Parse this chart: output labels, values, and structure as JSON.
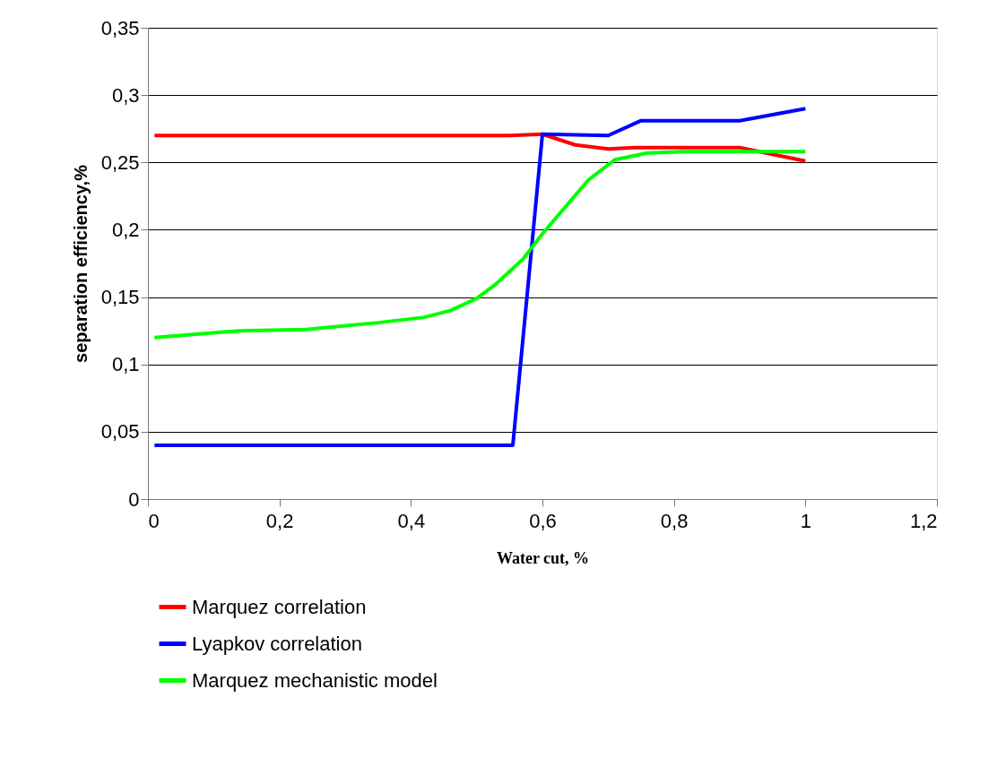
{
  "chart_data": {
    "type": "line",
    "xlabel": "Water cut, %",
    "ylabel": "separation efficiency,%",
    "xlim": [
      0,
      1.2
    ],
    "ylim": [
      0,
      0.35
    ],
    "xticks": [
      {
        "value": 0,
        "label": "0"
      },
      {
        "value": 0.2,
        "label": "0,2"
      },
      {
        "value": 0.4,
        "label": "0,4"
      },
      {
        "value": 0.6,
        "label": "0,6"
      },
      {
        "value": 0.8,
        "label": "0,8"
      },
      {
        "value": 1,
        "label": "1"
      },
      {
        "value": 1.2,
        "label": "1,2"
      }
    ],
    "yticks": [
      {
        "value": 0,
        "label": "0"
      },
      {
        "value": 0.05,
        "label": "0,05"
      },
      {
        "value": 0.1,
        "label": "0,1"
      },
      {
        "value": 0.15,
        "label": "0,15"
      },
      {
        "value": 0.2,
        "label": "0,2"
      },
      {
        "value": 0.25,
        "label": "0,25"
      },
      {
        "value": 0.3,
        "label": "0,3"
      },
      {
        "value": 0.35,
        "label": "0,35"
      }
    ],
    "grid": "y",
    "legend": "bottom",
    "marker": "none",
    "line_style": "solid",
    "series": [
      {
        "name": "Marquez correlation",
        "color": "#ff0000",
        "x": [
          0.01,
          0.55,
          0.6,
          0.65,
          0.7,
          0.74,
          0.9,
          1.0
        ],
        "values": [
          0.27,
          0.27,
          0.271,
          0.263,
          0.26,
          0.261,
          0.261,
          0.251
        ]
      },
      {
        "name": "Lyapkov correlation",
        "color": "#0000ff",
        "x": [
          0.01,
          0.555,
          0.6,
          0.7,
          0.75,
          0.9,
          1.0
        ],
        "values": [
          0.04,
          0.04,
          0.271,
          0.27,
          0.281,
          0.281,
          0.29
        ]
      },
      {
        "name": "Marquez mechanistic model",
        "color": "#00ff00",
        "x": [
          0.01,
          0.14,
          0.24,
          0.35,
          0.42,
          0.46,
          0.5,
          0.53,
          0.57,
          0.6,
          0.67,
          0.71,
          0.76,
          0.82,
          0.9,
          1.0
        ],
        "values": [
          0.12,
          0.125,
          0.126,
          0.131,
          0.135,
          0.14,
          0.149,
          0.16,
          0.178,
          0.197,
          0.237,
          0.252,
          0.257,
          0.258,
          0.258,
          0.258
        ]
      }
    ]
  }
}
